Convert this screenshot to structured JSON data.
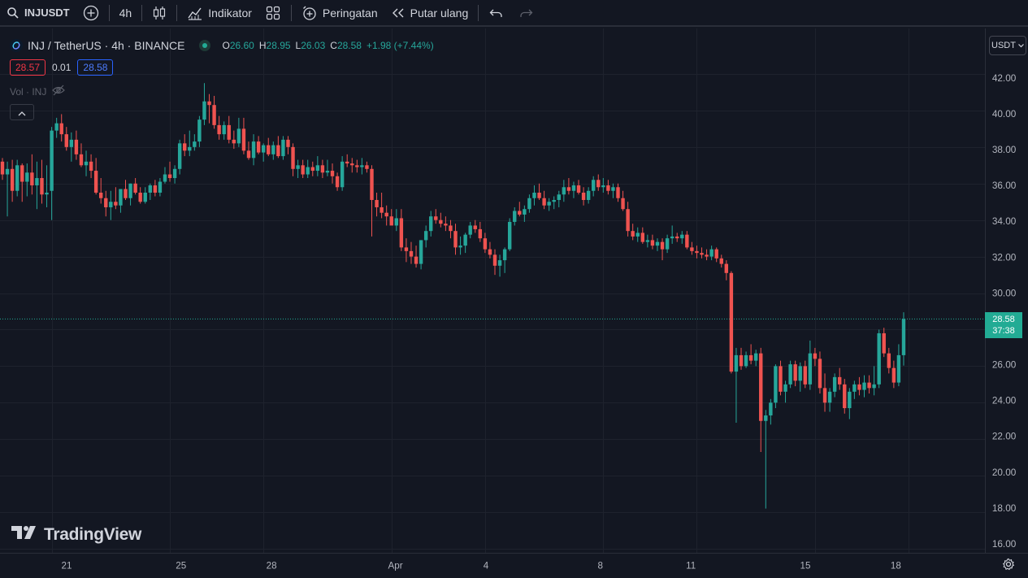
{
  "toolbar": {
    "symbol": "INJUSDT",
    "interval": "4h",
    "indicators_label": "Indikator",
    "alert_label": "Peringatan",
    "replay_label": "Putar ulang"
  },
  "legend": {
    "title": "INJ / TetherUS · 4h · BINANCE",
    "open_label": "O",
    "open": "26.60",
    "high_label": "H",
    "high": "28.95",
    "low_label": "L",
    "low": "26.03",
    "close_label": "C",
    "close": "28.58",
    "change": "+1.98 (+7.44%)",
    "sell_price": "28.57",
    "spread": "0.01",
    "buy_price": "28.58",
    "volume_label": "Vol · INJ"
  },
  "price_axis": {
    "currency_button": "USDT",
    "last_price": "28.58",
    "countdown": "37:38"
  },
  "branding": "TradingView",
  "colors": {
    "up": "#26a69a",
    "down": "#ef5350",
    "background": "#131722",
    "grid": "#1e222d",
    "last_price": "#22ab94"
  },
  "chart_data": {
    "type": "candlestick",
    "y_range": [
      16,
      43
    ],
    "y_ticks": [
      "16.00",
      "18.00",
      "20.00",
      "22.00",
      "24.00",
      "26.00",
      "28.00",
      "30.00",
      "32.00",
      "34.00",
      "36.00",
      "38.00",
      "40.00",
      "42.00"
    ],
    "x_ticks": [
      "21",
      "25",
      "28",
      "Apr",
      "4",
      "8",
      "11",
      "15",
      "18"
    ],
    "x_tick_bars": [
      10,
      34,
      53,
      79,
      98,
      122,
      141,
      165,
      184
    ],
    "last_price_line": 28.58,
    "ohlc": [
      [
        37.2,
        37.4,
        36.2,
        36.5
      ],
      [
        36.5,
        37.2,
        34.2,
        36.8
      ],
      [
        36.8,
        37.3,
        35.0,
        35.6
      ],
      [
        35.6,
        37.3,
        35.3,
        37.0
      ],
      [
        37.0,
        37.1,
        35.0,
        36.1
      ],
      [
        36.1,
        37.1,
        35.3,
        36.6
      ],
      [
        36.6,
        37.6,
        35.4,
        35.9
      ],
      [
        35.9,
        37.2,
        34.6,
        36.3
      ],
      [
        36.3,
        37.3,
        34.9,
        35.4
      ],
      [
        35.4,
        37.0,
        34.7,
        35.5
      ],
      [
        35.6,
        39.1,
        34.0,
        38.9
      ],
      [
        38.9,
        39.6,
        38.5,
        39.3
      ],
      [
        39.3,
        39.8,
        38.3,
        38.7
      ],
      [
        38.7,
        39.1,
        37.8,
        38.0
      ],
      [
        38.0,
        38.8,
        37.2,
        38.4
      ],
      [
        38.4,
        38.9,
        37.3,
        37.6
      ],
      [
        37.6,
        38.2,
        36.9,
        37.0
      ],
      [
        37.0,
        37.8,
        36.4,
        37.2
      ],
      [
        37.2,
        37.6,
        36.3,
        36.7
      ],
      [
        36.7,
        37.4,
        35.4,
        35.5
      ],
      [
        35.5,
        36.3,
        34.9,
        35.2
      ],
      [
        35.2,
        35.6,
        34.2,
        34.7
      ],
      [
        34.7,
        35.6,
        34.0,
        35.0
      ],
      [
        35.0,
        35.8,
        34.6,
        34.8
      ],
      [
        34.8,
        35.7,
        34.4,
        35.7
      ],
      [
        35.7,
        36.2,
        35.1,
        35.2
      ],
      [
        35.2,
        36.0,
        34.8,
        36.0
      ],
      [
        36.0,
        36.3,
        35.4,
        35.5
      ],
      [
        35.5,
        35.8,
        34.9,
        35.0
      ],
      [
        35.0,
        35.8,
        34.9,
        35.5
      ],
      [
        35.5,
        36.0,
        35.1,
        35.9
      ],
      [
        35.9,
        36.2,
        35.3,
        35.5
      ],
      [
        35.5,
        36.3,
        35.3,
        36.1
      ],
      [
        36.1,
        36.9,
        36.0,
        36.5
      ],
      [
        36.5,
        37.2,
        36.1,
        36.3
      ],
      [
        36.3,
        37.0,
        36.0,
        36.8
      ],
      [
        36.8,
        38.4,
        36.5,
        38.2
      ],
      [
        38.2,
        38.7,
        37.5,
        37.8
      ],
      [
        37.8,
        38.9,
        37.5,
        38.0
      ],
      [
        38.0,
        38.7,
        37.8,
        38.3
      ],
      [
        38.3,
        39.7,
        38.0,
        39.5
      ],
      [
        39.5,
        41.5,
        39.2,
        40.5
      ],
      [
        40.5,
        40.9,
        39.3,
        40.3
      ],
      [
        40.3,
        40.8,
        39.0,
        39.2
      ],
      [
        39.2,
        39.7,
        38.4,
        38.7
      ],
      [
        38.7,
        39.4,
        38.4,
        39.2
      ],
      [
        39.2,
        39.7,
        38.2,
        38.4
      ],
      [
        38.4,
        38.9,
        37.9,
        38.2
      ],
      [
        38.2,
        39.6,
        38.0,
        39.0
      ],
      [
        39.0,
        39.6,
        37.6,
        37.8
      ],
      [
        37.8,
        38.3,
        37.3,
        37.4
      ],
      [
        37.4,
        38.7,
        37.0,
        38.3
      ],
      [
        38.3,
        38.6,
        37.6,
        37.7
      ],
      [
        37.7,
        38.2,
        37.2,
        38.1
      ],
      [
        38.1,
        38.5,
        37.5,
        37.6
      ],
      [
        37.6,
        38.3,
        37.3,
        38.1
      ],
      [
        38.1,
        38.6,
        37.4,
        37.5
      ],
      [
        37.5,
        38.6,
        37.3,
        38.4
      ],
      [
        38.4,
        38.6,
        37.6,
        38.0
      ],
      [
        38.0,
        38.2,
        36.4,
        36.8
      ],
      [
        36.8,
        37.3,
        36.3,
        37.0
      ],
      [
        37.0,
        37.3,
        36.3,
        36.5
      ],
      [
        36.5,
        37.3,
        36.3,
        36.9
      ],
      [
        36.9,
        37.2,
        36.4,
        36.7
      ],
      [
        36.7,
        37.5,
        36.4,
        37.0
      ],
      [
        37.0,
        37.3,
        36.3,
        36.6
      ],
      [
        36.6,
        37.3,
        36.4,
        36.7
      ],
      [
        36.7,
        37.1,
        36.0,
        36.4
      ],
      [
        36.4,
        36.6,
        35.6,
        35.8
      ],
      [
        35.8,
        37.5,
        35.6,
        37.2
      ],
      [
        37.2,
        37.6,
        36.9,
        37.1
      ],
      [
        37.1,
        37.4,
        36.6,
        37.0
      ],
      [
        37.0,
        37.3,
        36.6,
        36.9
      ],
      [
        36.9,
        37.4,
        36.5,
        37.0
      ],
      [
        37.0,
        37.2,
        36.6,
        36.8
      ],
      [
        36.8,
        37.0,
        33.1,
        35.1
      ],
      [
        35.1,
        35.5,
        34.2,
        34.7
      ],
      [
        34.7,
        35.5,
        34.1,
        34.4
      ],
      [
        34.4,
        34.8,
        33.7,
        34.2
      ],
      [
        34.2,
        34.6,
        33.8,
        33.7
      ],
      [
        33.7,
        34.6,
        33.4,
        34.1
      ],
      [
        34.1,
        34.6,
        32.3,
        32.5
      ],
      [
        32.5,
        33.0,
        31.7,
        32.3
      ],
      [
        32.3,
        32.8,
        31.6,
        32.0
      ],
      [
        32.0,
        32.6,
        31.4,
        31.6
      ],
      [
        31.6,
        32.9,
        31.3,
        32.9
      ],
      [
        32.9,
        33.7,
        32.5,
        33.4
      ],
      [
        33.4,
        34.5,
        33.1,
        34.2
      ],
      [
        34.2,
        34.6,
        33.8,
        34.0
      ],
      [
        34.0,
        34.4,
        33.6,
        33.8
      ],
      [
        33.8,
        34.2,
        33.4,
        33.7
      ],
      [
        33.7,
        34.0,
        33.0,
        33.4
      ],
      [
        33.4,
        33.8,
        32.1,
        32.5
      ],
      [
        32.5,
        33.1,
        32.1,
        32.6
      ],
      [
        32.6,
        33.3,
        32.2,
        33.2
      ],
      [
        33.2,
        33.9,
        33.0,
        33.7
      ],
      [
        33.7,
        34.0,
        33.3,
        33.5
      ],
      [
        33.5,
        33.9,
        32.8,
        33.0
      ],
      [
        33.0,
        33.3,
        32.2,
        32.4
      ],
      [
        32.4,
        32.8,
        31.9,
        32.1
      ],
      [
        32.1,
        32.4,
        31.0,
        31.5
      ],
      [
        31.5,
        32.1,
        30.9,
        31.8
      ],
      [
        31.8,
        32.5,
        31.1,
        32.4
      ],
      [
        32.4,
        34.1,
        32.3,
        33.9
      ],
      [
        33.9,
        34.7,
        33.7,
        34.5
      ],
      [
        34.5,
        35.0,
        34.2,
        34.3
      ],
      [
        34.3,
        34.8,
        33.9,
        34.6
      ],
      [
        34.6,
        35.4,
        34.4,
        35.2
      ],
      [
        35.2,
        35.9,
        34.8,
        35.5
      ],
      [
        35.5,
        36.0,
        35.1,
        35.2
      ],
      [
        35.2,
        35.6,
        34.6,
        34.8
      ],
      [
        34.8,
        35.2,
        34.5,
        35.0
      ],
      [
        35.0,
        35.3,
        34.6,
        35.1
      ],
      [
        35.1,
        35.6,
        34.7,
        35.4
      ],
      [
        35.4,
        36.2,
        35.0,
        35.8
      ],
      [
        35.8,
        36.3,
        35.4,
        35.6
      ],
      [
        35.6,
        36.1,
        35.2,
        35.9
      ],
      [
        35.9,
        36.2,
        35.4,
        35.5
      ],
      [
        35.5,
        35.8,
        34.8,
        35.1
      ],
      [
        35.1,
        35.8,
        34.9,
        35.6
      ],
      [
        35.6,
        36.4,
        35.3,
        36.2
      ],
      [
        36.2,
        36.5,
        35.6,
        35.8
      ],
      [
        35.8,
        36.3,
        35.5,
        35.9
      ],
      [
        35.9,
        36.2,
        35.4,
        35.6
      ],
      [
        35.6,
        36.0,
        35.2,
        35.8
      ],
      [
        35.8,
        36.0,
        35.0,
        35.2
      ],
      [
        35.2,
        35.6,
        34.5,
        34.6
      ],
      [
        34.6,
        35.0,
        33.1,
        33.4
      ],
      [
        33.4,
        33.8,
        32.9,
        33.1
      ],
      [
        33.1,
        33.6,
        32.8,
        33.3
      ],
      [
        33.3,
        33.6,
        32.7,
        32.8
      ],
      [
        32.8,
        33.2,
        32.5,
        32.9
      ],
      [
        32.9,
        33.2,
        32.4,
        32.6
      ],
      [
        32.6,
        33.0,
        32.3,
        32.8
      ],
      [
        32.8,
        33.0,
        31.8,
        32.4
      ],
      [
        32.4,
        33.2,
        32.2,
        33.0
      ],
      [
        33.0,
        33.7,
        32.7,
        33.1
      ],
      [
        33.1,
        33.3,
        32.8,
        33.0
      ],
      [
        33.0,
        33.4,
        32.7,
        33.2
      ],
      [
        33.2,
        33.4,
        32.4,
        32.5
      ],
      [
        32.5,
        32.8,
        32.1,
        32.3
      ],
      [
        32.3,
        32.6,
        31.9,
        32.2
      ],
      [
        32.2,
        32.5,
        31.9,
        32.1
      ],
      [
        32.1,
        32.4,
        31.8,
        32.0
      ],
      [
        32.0,
        32.6,
        31.8,
        32.4
      ],
      [
        32.4,
        32.5,
        31.7,
        31.9
      ],
      [
        31.9,
        32.1,
        31.4,
        31.6
      ],
      [
        31.6,
        31.8,
        30.7,
        31.1
      ],
      [
        31.1,
        31.2,
        25.6,
        25.7
      ],
      [
        25.7,
        27.0,
        22.9,
        26.6
      ],
      [
        26.6,
        27.0,
        25.8,
        26.0
      ],
      [
        26.0,
        26.8,
        25.9,
        26.6
      ],
      [
        26.6,
        27.2,
        26.1,
        26.3
      ],
      [
        26.3,
        26.9,
        26.0,
        26.7
      ],
      [
        26.7,
        27.0,
        21.3,
        23.0
      ],
      [
        23.0,
        23.6,
        18.2,
        23.3
      ],
      [
        23.3,
        24.2,
        22.8,
        24.0
      ],
      [
        24.0,
        26.1,
        23.7,
        26.0
      ],
      [
        26.0,
        26.3,
        24.4,
        24.6
      ],
      [
        24.6,
        25.2,
        24.0,
        25.0
      ],
      [
        25.0,
        26.3,
        24.8,
        26.1
      ],
      [
        26.1,
        26.3,
        24.9,
        25.2
      ],
      [
        25.2,
        26.2,
        24.6,
        26.0
      ],
      [
        26.0,
        26.3,
        24.8,
        25.0
      ],
      [
        25.0,
        27.4,
        24.7,
        26.7
      ],
      [
        26.7,
        27.0,
        26.0,
        26.4
      ],
      [
        26.4,
        26.8,
        24.5,
        24.8
      ],
      [
        24.8,
        25.6,
        23.5,
        24.0
      ],
      [
        24.0,
        24.8,
        23.5,
        24.6
      ],
      [
        24.6,
        25.6,
        24.3,
        25.4
      ],
      [
        25.4,
        25.9,
        24.7,
        25.0
      ],
      [
        25.0,
        25.3,
        23.4,
        23.7
      ],
      [
        23.7,
        24.8,
        23.1,
        24.6
      ],
      [
        24.6,
        25.2,
        24.2,
        25.0
      ],
      [
        25.0,
        25.4,
        24.4,
        24.7
      ],
      [
        24.7,
        25.5,
        24.3,
        25.1
      ],
      [
        25.1,
        25.5,
        24.5,
        24.8
      ],
      [
        24.8,
        26.0,
        24.4,
        25.0
      ],
      [
        25.0,
        28.0,
        24.8,
        27.8
      ],
      [
        27.8,
        28.1,
        26.5,
        26.7
      ],
      [
        26.7,
        27.0,
        25.6,
        25.9
      ],
      [
        25.9,
        26.3,
        24.8,
        25.1
      ],
      [
        25.1,
        27.2,
        24.9,
        26.6
      ],
      [
        26.6,
        28.95,
        26.03,
        28.58
      ]
    ]
  }
}
